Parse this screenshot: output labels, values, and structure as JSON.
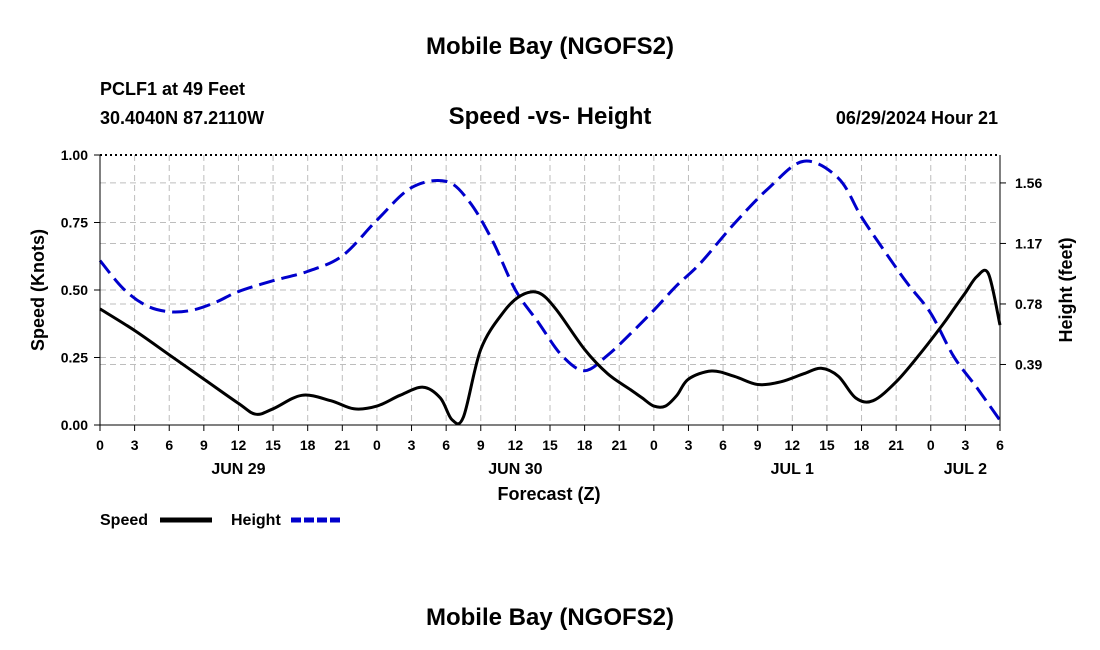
{
  "header": {
    "title": "Mobile Bay (NGOFS2)",
    "station_line": "PCLF1 at 49 Feet",
    "coords_line": "30.4040N  87.2110W",
    "subtitle": "Speed -vs- Height",
    "datetime": "06/29/2024 Hour 21"
  },
  "footer": {
    "title": "Mobile Bay (NGOFS2)"
  },
  "chart_data": {
    "type": "line",
    "title": "Speed -vs- Height",
    "xlabel": "Forecast (Z)",
    "ylabel": "Speed (Knots)",
    "y2label": "Height (feet)",
    "xlim": [
      0,
      78
    ],
    "ylim": [
      0,
      1
    ],
    "y2lim": [
      0,
      1.74
    ],
    "x_ticks": [
      0,
      3,
      6,
      9,
      12,
      15,
      18,
      21,
      24,
      27,
      30,
      33,
      36,
      39,
      42,
      45,
      48,
      51,
      54,
      57,
      60,
      63,
      66,
      69,
      72,
      75,
      78
    ],
    "x_tick_labels": [
      "0",
      "3",
      "6",
      "9",
      "12",
      "15",
      "18",
      "21",
      "0",
      "3",
      "6",
      "9",
      "12",
      "15",
      "18",
      "21",
      "0",
      "3",
      "6",
      "9",
      "12",
      "15",
      "18",
      "21",
      "0",
      "3",
      "6"
    ],
    "date_labels": [
      {
        "x": 12,
        "label": "JUN 29"
      },
      {
        "x": 36,
        "label": "JUN 30"
      },
      {
        "x": 60,
        "label": "JUL 1"
      },
      {
        "x": 75,
        "label": "JUL 2"
      }
    ],
    "y_ticks": [
      0.0,
      0.25,
      0.5,
      0.75,
      1.0
    ],
    "y_tick_labels": [
      "0.00",
      "0.25",
      "0.50",
      "0.75",
      "1.00"
    ],
    "y2_ticks": [
      0.39,
      0.78,
      1.17,
      1.56
    ],
    "y2_tick_labels": [
      "0.39",
      "0.78",
      "1.17",
      "1.56"
    ],
    "series": [
      {
        "name": "Speed",
        "axis": "left",
        "color": "#000000",
        "dash": "solid",
        "x": [
          0,
          3,
          6,
          9,
          12,
          13.5,
          15,
          17.5,
          20,
          22,
          24,
          26,
          28,
          29.5,
          30.5,
          31.5,
          33,
          35,
          36.5,
          38,
          39.5,
          42,
          44,
          46,
          47,
          48,
          49,
          50,
          51,
          53,
          55,
          57,
          59,
          61,
          62.5,
          64,
          65.5,
          67,
          69,
          71,
          73,
          74,
          75,
          76,
          77,
          78
        ],
        "values": [
          0.43,
          0.35,
          0.26,
          0.17,
          0.08,
          0.04,
          0.06,
          0.11,
          0.09,
          0.06,
          0.07,
          0.11,
          0.14,
          0.1,
          0.02,
          0.03,
          0.28,
          0.42,
          0.48,
          0.49,
          0.43,
          0.28,
          0.19,
          0.13,
          0.1,
          0.07,
          0.07,
          0.11,
          0.17,
          0.2,
          0.18,
          0.15,
          0.16,
          0.19,
          0.21,
          0.18,
          0.1,
          0.09,
          0.16,
          0.26,
          0.37,
          0.43,
          0.49,
          0.55,
          0.56,
          0.37
        ]
      },
      {
        "name": "Height",
        "axis": "right",
        "color": "#0000cc",
        "dash": "dashed",
        "x": [
          0,
          2,
          4,
          6,
          8,
          10,
          12,
          15,
          18,
          21,
          24,
          27,
          30,
          32,
          34,
          36,
          38,
          40,
          42,
          44,
          46,
          48,
          50,
          52,
          55,
          58,
          61,
          64,
          66,
          68,
          70,
          72,
          74,
          76,
          78
        ],
        "values": [
          1.06,
          0.88,
          0.77,
          0.73,
          0.74,
          0.79,
          0.86,
          0.93,
          0.99,
          1.09,
          1.32,
          1.53,
          1.57,
          1.44,
          1.19,
          0.87,
          0.66,
          0.45,
          0.35,
          0.45,
          0.59,
          0.74,
          0.9,
          1.04,
          1.3,
          1.53,
          1.7,
          1.59,
          1.34,
          1.12,
          0.91,
          0.72,
          0.44,
          0.24,
          0.03
        ]
      }
    ],
    "legend": {
      "placement": "bottom-left",
      "entries": [
        {
          "label": "Speed",
          "color": "#000000",
          "dash": "solid"
        },
        {
          "label": "Height",
          "color": "#0000cc",
          "dash": "dashed"
        }
      ]
    },
    "grid": true
  }
}
